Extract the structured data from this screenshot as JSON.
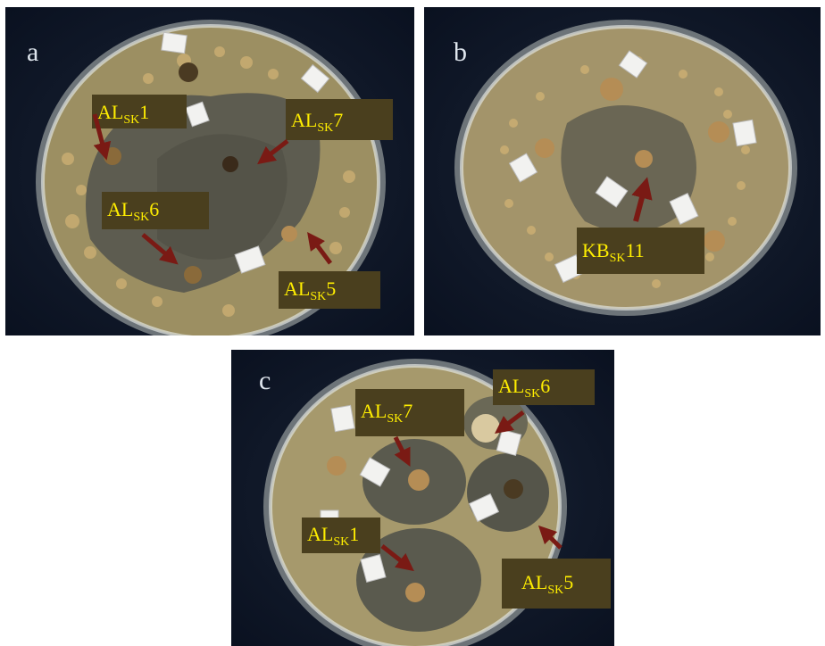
{
  "figure": {
    "panels": [
      {
        "letter": "a",
        "labels": [
          {
            "main": "AL",
            "sub": "SK",
            "num": "1"
          },
          {
            "main": "AL",
            "sub": "SK",
            "num": "7"
          },
          {
            "main": "AL",
            "sub": "SK",
            "num": "6"
          },
          {
            "main": "AL",
            "sub": "SK",
            "num": "5"
          }
        ]
      },
      {
        "letter": "b",
        "labels": [
          {
            "main": "KB",
            "sub": "SK",
            "num": "11"
          }
        ]
      },
      {
        "letter": "c",
        "labels": [
          {
            "main": "AL",
            "sub": "SK",
            "num": "7"
          },
          {
            "main": "AL",
            "sub": "SK",
            "num": "6"
          },
          {
            "main": "AL",
            "sub": "SK",
            "num": "1"
          },
          {
            "main": "AL",
            "sub": "SK",
            "num": "5"
          }
        ]
      }
    ],
    "colors": {
      "background": "#0d1524",
      "agar": "#9c8f62",
      "clear_zone": "#5d5c50",
      "label_bg": "#4a3f1e",
      "label_text": "#ffee00",
      "arrow": "#7a1a14"
    }
  }
}
